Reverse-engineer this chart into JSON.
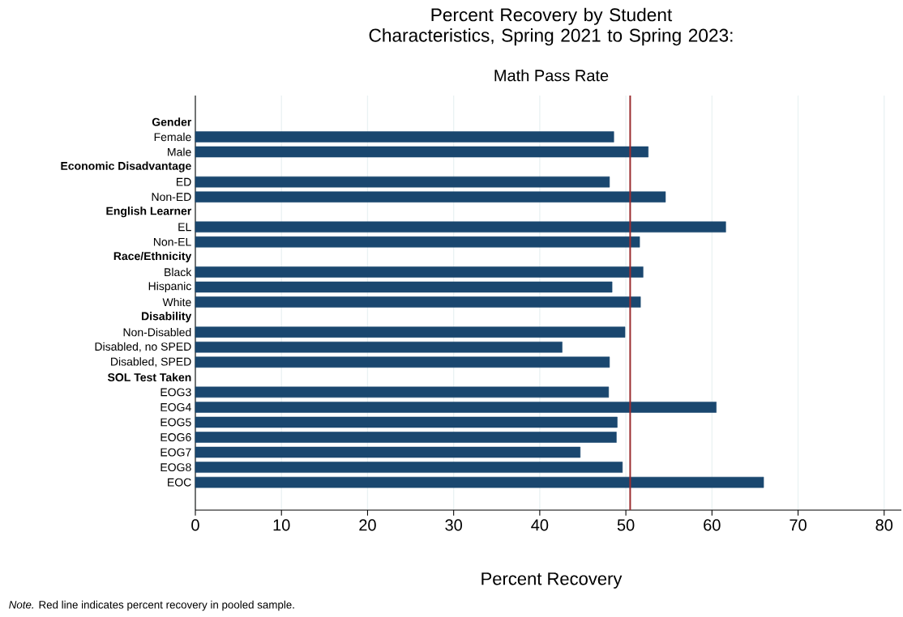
{
  "chart_data": {
    "type": "bar",
    "orientation": "horizontal",
    "title": "Percent Recovery by Student Characteristics, Spring 2021 to Spring 2023:",
    "subtitle": "Math Pass Rate",
    "xlabel": "Percent Recovery",
    "categories": [
      "**Gender**",
      "Female",
      "Male",
      "**Economic Disadvantage**",
      "ED",
      "Non-ED",
      "**English Learner**",
      "EL",
      "Non-EL",
      "**Race/Ethnicity**",
      "Black",
      "Hispanic",
      "White",
      "**Disability**",
      "Non-Disabled",
      "Disabled, no SPED",
      "Disabled, SPED",
      "**SOL Test Taken**",
      "EOG3",
      "EOG4",
      "EOG5",
      "EOG6",
      "EOG7",
      "EOG8",
      "EOC"
    ],
    "values": [
      null,
      48.6,
      52.6,
      null,
      48.1,
      54.6,
      null,
      61.6,
      51.6,
      null,
      52.0,
      48.4,
      51.7,
      null,
      49.9,
      42.6,
      48.1,
      null,
      48.0,
      60.5,
      49.0,
      48.9,
      44.7,
      49.6,
      66.0
    ],
    "color": "#1a476f",
    "xlim": [
      0,
      82
    ],
    "xticks": [
      0,
      10,
      20,
      30,
      40,
      50,
      60,
      70,
      80
    ],
    "grid": "x",
    "ref_lines": [
      {
        "axis": "x",
        "value": 50.5,
        "color": "#9b2d30"
      }
    ],
    "annotations": [
      "*Note.* Red line indicates percent recovery in pooled sample."
    ]
  }
}
